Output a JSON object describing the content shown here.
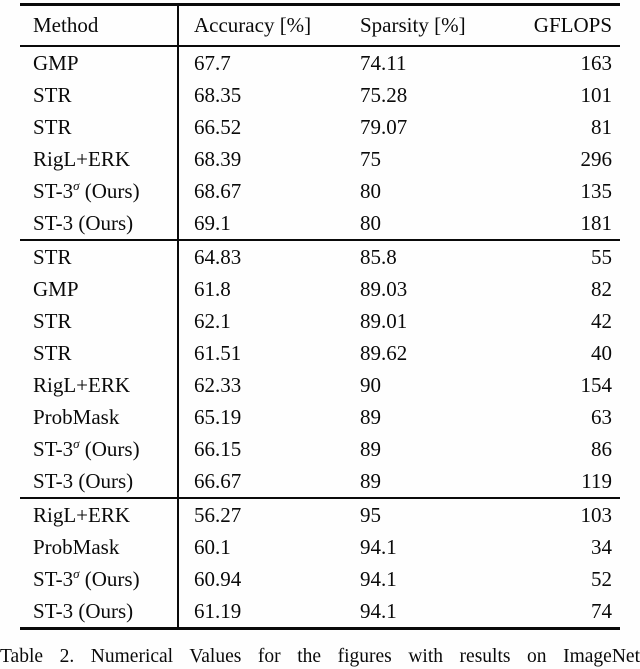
{
  "page": {
    "background": "#fefefe",
    "text_color": "#0a0a0a",
    "rule_color": "#0a0a0a"
  },
  "table": {
    "columns": [
      "Method",
      "Accuracy [%]",
      "Sparsity [%]",
      "GFLOPS"
    ],
    "groups": [
      {
        "rows": [
          {
            "method": "GMP",
            "sup": "",
            "after": "",
            "accuracy": "67.7",
            "sparsity": "74.11",
            "gflops": "163"
          },
          {
            "method": "STR",
            "sup": "",
            "after": "",
            "accuracy": "68.35",
            "sparsity": "75.28",
            "gflops": "101"
          },
          {
            "method": "STR",
            "sup": "",
            "after": "",
            "accuracy": "66.52",
            "sparsity": "79.07",
            "gflops": "81"
          },
          {
            "method": "RigL+ERK",
            "sup": "",
            "after": "",
            "accuracy": "68.39",
            "sparsity": "75",
            "gflops": "296"
          },
          {
            "method": "ST-3",
            "sup": "σ",
            "after": " (Ours)",
            "accuracy": "68.67",
            "sparsity": "80",
            "gflops": "135"
          },
          {
            "method": "ST-3",
            "sup": "",
            "after": " (Ours)",
            "accuracy": "69.1",
            "sparsity": "80",
            "gflops": "181"
          }
        ]
      },
      {
        "rows": [
          {
            "method": "STR",
            "sup": "",
            "after": "",
            "accuracy": "64.83",
            "sparsity": "85.8",
            "gflops": "55"
          },
          {
            "method": "GMP",
            "sup": "",
            "after": "",
            "accuracy": "61.8",
            "sparsity": "89.03",
            "gflops": "82"
          },
          {
            "method": "STR",
            "sup": "",
            "after": "",
            "accuracy": "62.1",
            "sparsity": "89.01",
            "gflops": "42"
          },
          {
            "method": "STR",
            "sup": "",
            "after": "",
            "accuracy": "61.51",
            "sparsity": "89.62",
            "gflops": "40"
          },
          {
            "method": "RigL+ERK",
            "sup": "",
            "after": "",
            "accuracy": "62.33",
            "sparsity": "90",
            "gflops": "154"
          },
          {
            "method": "ProbMask",
            "sup": "",
            "after": "",
            "accuracy": "65.19",
            "sparsity": "89",
            "gflops": "63"
          },
          {
            "method": "ST-3",
            "sup": "σ",
            "after": " (Ours)",
            "accuracy": "66.15",
            "sparsity": "89",
            "gflops": "86"
          },
          {
            "method": "ST-3",
            "sup": "",
            "after": " (Ours)",
            "accuracy": "66.67",
            "sparsity": "89",
            "gflops": "119"
          }
        ]
      },
      {
        "rows": [
          {
            "method": "RigL+ERK",
            "sup": "",
            "after": "",
            "accuracy": "56.27",
            "sparsity": "95",
            "gflops": "103"
          },
          {
            "method": "ProbMask",
            "sup": "",
            "after": "",
            "accuracy": "60.1",
            "sparsity": "94.1",
            "gflops": "34"
          },
          {
            "method": "ST-3",
            "sup": "σ",
            "after": " (Ours)",
            "accuracy": "60.94",
            "sparsity": "94.1",
            "gflops": "52"
          },
          {
            "method": "ST-3",
            "sup": "",
            "after": " (Ours)",
            "accuracy": "61.19",
            "sparsity": "94.1",
            "gflops": "74"
          }
        ]
      }
    ]
  },
  "caption": {
    "visible_text": "Table 2. Numerical Values for the figures with results on ImageNet"
  }
}
